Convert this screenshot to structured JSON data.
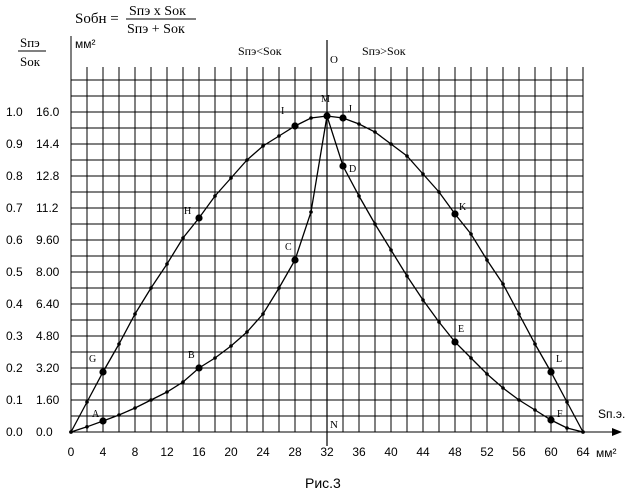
{
  "header": {
    "formula_lhs": "Sобн =",
    "formula_num": "Sпэ x Sок",
    "formula_den": "Sпэ + Sок"
  },
  "chart_data": {
    "type": "line",
    "title": "",
    "ratio_axis_label_num": "Sпэ",
    "ratio_axis_label_den": "Sок",
    "y_unit": "мм²",
    "x_unit": "мм²",
    "x_label": "Sп.э.",
    "caption": "Рис.3",
    "region_left": "Sпэ<Sок",
    "region_right": "Sпэ>Sок",
    "axis_o_label": "O",
    "axis_n_label": "N",
    "xlim": [
      0,
      64
    ],
    "ylim": [
      0,
      16
    ],
    "x_ticks": [
      "0",
      "4",
      "8",
      "12",
      "16",
      "20",
      "24",
      "28",
      "32",
      "36",
      "40",
      "44",
      "48",
      "52",
      "56",
      "60",
      "64"
    ],
    "y_ticks": [
      "0.0",
      "1.60",
      "3.20",
      "4.80",
      "6.40",
      "8.00",
      "9.60",
      "11.2",
      "12.8",
      "14.4",
      "16.0"
    ],
    "ratio_ticks": [
      "0.0",
      "0.1",
      "0.2",
      "0.3",
      "0.4",
      "0.5",
      "0.6",
      "0.7",
      "0.8",
      "0.9",
      "1.0"
    ],
    "grid": true,
    "series": [
      {
        "points": [
          [
            0,
            0
          ],
          [
            2,
            0.26
          ],
          [
            4,
            0.55
          ],
          [
            6,
            0.85
          ],
          [
            8,
            1.2
          ],
          [
            10,
            1.6
          ],
          [
            12,
            2.0
          ],
          [
            14,
            2.5
          ],
          [
            16,
            3.2
          ],
          [
            18,
            3.7
          ],
          [
            20,
            4.3
          ],
          [
            22,
            5.0
          ],
          [
            24,
            5.9
          ],
          [
            26,
            7.2
          ],
          [
            28,
            8.6
          ],
          [
            30,
            11.0
          ],
          [
            32,
            15.8
          ],
          [
            34,
            13.3
          ],
          [
            36,
            11.8
          ],
          [
            38,
            10.4
          ],
          [
            40,
            9.1
          ],
          [
            42,
            7.8
          ],
          [
            44,
            6.6
          ],
          [
            46,
            5.5
          ],
          [
            48,
            4.5
          ],
          [
            50,
            3.7
          ],
          [
            52,
            2.9
          ],
          [
            54,
            2.2
          ],
          [
            56,
            1.6
          ],
          [
            58,
            1.1
          ],
          [
            60,
            0.6
          ],
          [
            62,
            0.2
          ],
          [
            64,
            0
          ]
        ]
      },
      {
        "points": [
          [
            0,
            0
          ],
          [
            2,
            1.5
          ],
          [
            4,
            3.0
          ],
          [
            6,
            4.4
          ],
          [
            8,
            5.9
          ],
          [
            10,
            7.2
          ],
          [
            12,
            8.4
          ],
          [
            14,
            9.7
          ],
          [
            16,
            10.7
          ],
          [
            18,
            11.8
          ],
          [
            20,
            12.7
          ],
          [
            22,
            13.6
          ],
          [
            24,
            14.3
          ],
          [
            26,
            14.8
          ],
          [
            28,
            15.3
          ],
          [
            30,
            15.7
          ],
          [
            32,
            15.8
          ],
          [
            34,
            15.7
          ],
          [
            36,
            15.4
          ],
          [
            38,
            15.0
          ],
          [
            40,
            14.4
          ],
          [
            42,
            13.8
          ],
          [
            44,
            12.9
          ],
          [
            46,
            12.0
          ],
          [
            48,
            10.9
          ],
          [
            50,
            9.9
          ],
          [
            52,
            8.6
          ],
          [
            54,
            7.4
          ],
          [
            56,
            5.9
          ],
          [
            58,
            4.4
          ],
          [
            60,
            3.0
          ],
          [
            62,
            1.5
          ],
          [
            64,
            0
          ]
        ]
      }
    ],
    "labeled_points": [
      {
        "label": "A",
        "x": 4,
        "y": 0.55
      },
      {
        "label": "B",
        "x": 16,
        "y": 3.2
      },
      {
        "label": "C",
        "x": 28,
        "y": 8.6
      },
      {
        "label": "D",
        "x": 34,
        "y": 13.3
      },
      {
        "label": "E",
        "x": 48,
        "y": 4.5
      },
      {
        "label": "F",
        "x": 60,
        "y": 0.6
      },
      {
        "label": "G",
        "x": 4,
        "y": 3.0
      },
      {
        "label": "H",
        "x": 16,
        "y": 10.7
      },
      {
        "label": "I",
        "x": 28,
        "y": 15.3
      },
      {
        "label": "J",
        "x": 34,
        "y": 15.7
      },
      {
        "label": "K",
        "x": 48,
        "y": 10.9
      },
      {
        "label": "L",
        "x": 60,
        "y": 3.0
      },
      {
        "label": "M",
        "x": 32,
        "y": 15.8
      }
    ]
  }
}
